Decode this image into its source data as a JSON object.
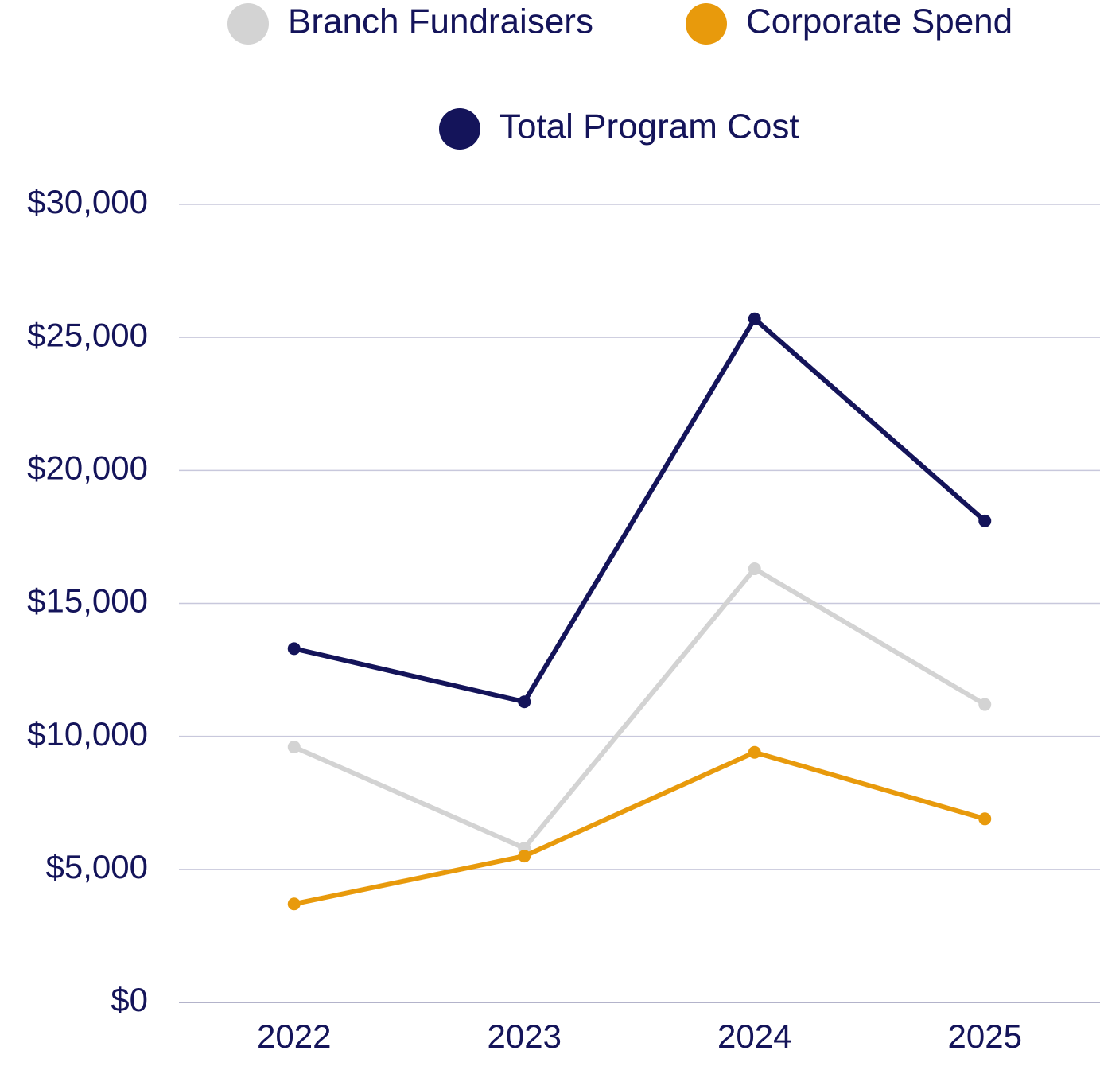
{
  "chart_data": {
    "type": "line",
    "categories": [
      "2022",
      "2023",
      "2024",
      "2025"
    ],
    "series": [
      {
        "name": "Branch Fundraisers",
        "color": "#d3d3d3",
        "values": [
          9600,
          5800,
          16300,
          11200
        ]
      },
      {
        "name": "Corporate Spend",
        "color": "#e89a0c",
        "values": [
          3700,
          5500,
          9400,
          6900
        ]
      },
      {
        "name": "Total Program Cost",
        "color": "#14145a",
        "values": [
          13300,
          11300,
          25700,
          18100
        ]
      }
    ],
    "ylim": [
      0,
      30000
    ],
    "yticks": [
      {
        "value": 0,
        "label": "$0"
      },
      {
        "value": 5000,
        "label": "$5,000"
      },
      {
        "value": 10000,
        "label": "$10,000"
      },
      {
        "value": 15000,
        "label": "$15,000"
      },
      {
        "value": 20000,
        "label": "$20,000"
      },
      {
        "value": 25000,
        "label": "$25,000"
      },
      {
        "value": 30000,
        "label": "$30,000"
      }
    ],
    "grid": true,
    "legend": "top"
  }
}
